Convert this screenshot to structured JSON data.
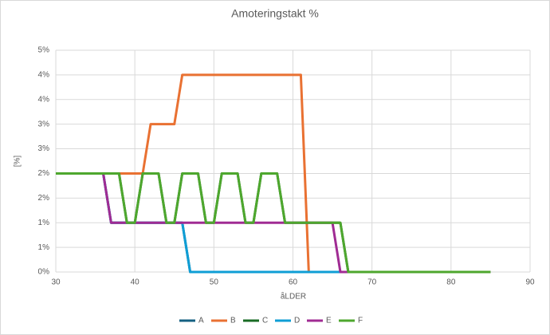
{
  "chart_data": {
    "type": "line",
    "title": "Amoteringstakt %",
    "x_label": "åLDER",
    "y_label": "[%]",
    "x": [
      30,
      31,
      32,
      33,
      34,
      35,
      36,
      37,
      38,
      39,
      40,
      41,
      42,
      43,
      44,
      45,
      46,
      47,
      48,
      49,
      50,
      51,
      52,
      53,
      54,
      55,
      56,
      57,
      58,
      59,
      60,
      61,
      62,
      63,
      64,
      65,
      66,
      67,
      68,
      69,
      70,
      71,
      72,
      73,
      74,
      75,
      76,
      77,
      78,
      79,
      80,
      81,
      82,
      83,
      84,
      85
    ],
    "xlim": [
      30,
      90
    ],
    "xticks": [
      30,
      40,
      50,
      60,
      70,
      80,
      90
    ],
    "ylim": [
      0,
      4.5
    ],
    "yticks": [
      {
        "value": 0,
        "label": "0%"
      },
      {
        "value": 0.5,
        "label": "1%"
      },
      {
        "value": 1,
        "label": "1%"
      },
      {
        "value": 1.5,
        "label": "2%"
      },
      {
        "value": 2,
        "label": "2%"
      },
      {
        "value": 2.5,
        "label": "3%"
      },
      {
        "value": 3,
        "label": "3%"
      },
      {
        "value": 3.5,
        "label": "4%"
      },
      {
        "value": 4,
        "label": "4%"
      },
      {
        "value": 4.5,
        "label": "5%"
      }
    ],
    "grid": true,
    "legend": "bottom",
    "series": [
      {
        "name": "A",
        "color": "#156082",
        "values": [
          2,
          2,
          2,
          2,
          2,
          2,
          2,
          1,
          1,
          1,
          1,
          1,
          1,
          1,
          1,
          1,
          1,
          0,
          0,
          0,
          0,
          0,
          0,
          0,
          0,
          0,
          0,
          0,
          0,
          0,
          0,
          0,
          0,
          0,
          0,
          0,
          0,
          0,
          0,
          0,
          0,
          0,
          0,
          0,
          0,
          0,
          0,
          0,
          0,
          0,
          0,
          0,
          0,
          0,
          0,
          0
        ]
      },
      {
        "name": "B",
        "color": "#e97132",
        "values": [
          2,
          2,
          2,
          2,
          2,
          2,
          2,
          2,
          2,
          2,
          2,
          2,
          3,
          3,
          3,
          3,
          4,
          4,
          4,
          4,
          4,
          4,
          4,
          4,
          4,
          4,
          4,
          4,
          4,
          4,
          4,
          4,
          0,
          0,
          0,
          0,
          0,
          0,
          0,
          0,
          0,
          0,
          0,
          0,
          0,
          0,
          0,
          0,
          0,
          0,
          0,
          0,
          0,
          0,
          0,
          0
        ]
      },
      {
        "name": "C",
        "color": "#196b24",
        "values": [
          2,
          2,
          2,
          2,
          2,
          2,
          2,
          2,
          2,
          1,
          1,
          2,
          2,
          2,
          1,
          1,
          2,
          2,
          2,
          1,
          1,
          2,
          2,
          2,
          1,
          1,
          2,
          2,
          2,
          1,
          1,
          1,
          1,
          1,
          1,
          1,
          1,
          0,
          0,
          0,
          0,
          0,
          0,
          0,
          0,
          0,
          0,
          0,
          0,
          0,
          0,
          0,
          0,
          0,
          0,
          0
        ]
      },
      {
        "name": "D",
        "color": "#0f9ed5",
        "values": [
          2,
          2,
          2,
          2,
          2,
          2,
          2,
          1,
          1,
          1,
          1,
          1,
          1,
          1,
          1,
          1,
          1,
          0,
          0,
          0,
          0,
          0,
          0,
          0,
          0,
          0,
          0,
          0,
          0,
          0,
          0,
          0,
          0,
          0,
          0,
          0,
          0,
          0,
          0,
          0,
          0,
          0,
          0,
          0,
          0,
          0,
          0,
          0,
          0,
          0,
          0,
          0,
          0,
          0,
          0,
          0
        ]
      },
      {
        "name": "E",
        "color": "#a02b93",
        "values": [
          2,
          2,
          2,
          2,
          2,
          2,
          2,
          1,
          1,
          1,
          1,
          1,
          1,
          1,
          1,
          1,
          1,
          1,
          1,
          1,
          1,
          1,
          1,
          1,
          1,
          1,
          1,
          1,
          1,
          1,
          1,
          1,
          1,
          1,
          1,
          1,
          0,
          0,
          0,
          0,
          0,
          0,
          0,
          0,
          0,
          0,
          0,
          0,
          0,
          0,
          0,
          0,
          0,
          0,
          0,
          0
        ]
      },
      {
        "name": "F",
        "color": "#4ea72e",
        "values": [
          2,
          2,
          2,
          2,
          2,
          2,
          2,
          2,
          2,
          1,
          1,
          2,
          2,
          2,
          1,
          1,
          2,
          2,
          2,
          1,
          1,
          2,
          2,
          2,
          1,
          1,
          2,
          2,
          2,
          1,
          1,
          1,
          1,
          1,
          1,
          1,
          1,
          0,
          0,
          0,
          0,
          0,
          0,
          0,
          0,
          0,
          0,
          0,
          0,
          0,
          0,
          0,
          0,
          0,
          0,
          0
        ]
      }
    ]
  }
}
